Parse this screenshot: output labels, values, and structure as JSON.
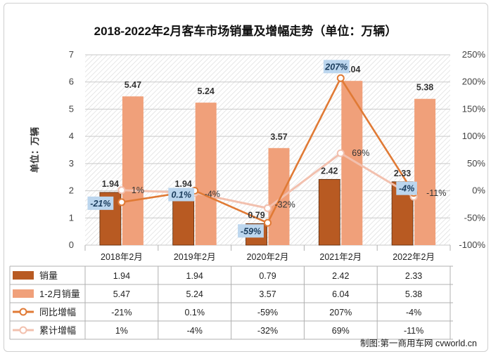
{
  "chart_data": {
    "type": "bar",
    "title": "2018-2022年2月客车市场销量及增幅走势（单位：万辆）",
    "ylabel": "单位：万辆",
    "categories": [
      "2018年2月",
      "2019年2月",
      "2020年2月",
      "2021年2月",
      "2022年2月"
    ],
    "ylim": [
      0,
      7
    ],
    "y_ticks": [
      0,
      1,
      2,
      3,
      4,
      5,
      6,
      7
    ],
    "y2lim": [
      -100,
      250
    ],
    "y2_ticks": [
      "-100%",
      "-50%",
      "0%",
      "50%",
      "100%",
      "150%",
      "200%",
      "250%"
    ],
    "series": [
      {
        "name": "销量",
        "kind": "bar",
        "axis": "left",
        "color": "#b85a22",
        "values": [
          1.94,
          1.94,
          0.79,
          2.42,
          2.33
        ],
        "labels": [
          "1.94",
          "1.94",
          "0.79",
          "2.42",
          "2.33"
        ]
      },
      {
        "name": "1-2月销量",
        "kind": "bar",
        "axis": "left",
        "color": "#f0a07a",
        "values": [
          5.47,
          5.24,
          3.57,
          6.04,
          5.38
        ],
        "labels": [
          "5.47",
          "5.24",
          "3.57",
          "6.04",
          "5.38"
        ]
      },
      {
        "name": "同比增幅",
        "kind": "line",
        "axis": "right",
        "color": "#e07a35",
        "values": [
          -21,
          0.1,
          -59,
          207,
          -4
        ],
        "labels": [
          "-21%",
          "0.1%",
          "-59%",
          "207%",
          "-4%"
        ]
      },
      {
        "name": "累计增幅",
        "kind": "line",
        "axis": "right",
        "color": "#f2c0ae",
        "values": [
          1,
          -4,
          -32,
          69,
          -11
        ],
        "labels": [
          "1%",
          "-4%",
          "-32%",
          "69%",
          "-11%"
        ]
      }
    ],
    "grid": true,
    "legend": "data-table-below"
  },
  "source": "制图:第一商用车网 cvworld.cn",
  "colors": {
    "bar1": "#b85a22",
    "bar2": "#f0a07a",
    "line1": "#e07a35",
    "line2": "#f2c0ae",
    "callout": "#bcd6ee"
  }
}
